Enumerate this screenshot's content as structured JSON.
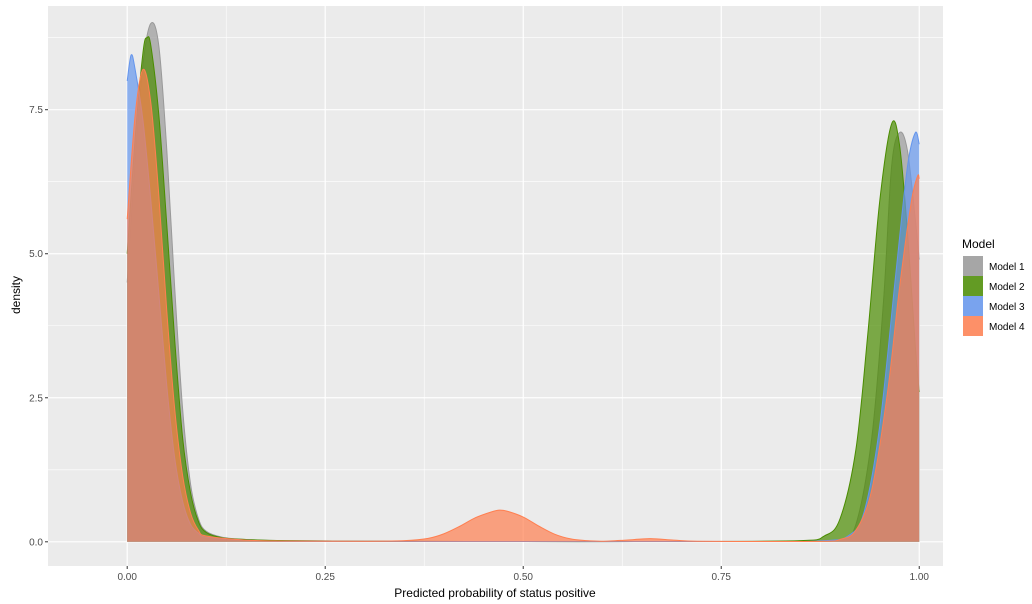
{
  "chart_data": {
    "type": "area",
    "subtype": "density",
    "title": "",
    "xlabel": "Predicted probability of status positive",
    "ylabel": "density",
    "xlim": [
      -0.1,
      1.03
    ],
    "ylim": [
      -0.42,
      9.3
    ],
    "x_ticks": [
      0.0,
      0.25,
      0.5,
      0.75,
      1.0
    ],
    "x_tick_labels": [
      "0.00",
      "0.25",
      "0.50",
      "0.75",
      "1.00"
    ],
    "y_ticks": [
      0.0,
      2.5,
      5.0,
      7.5
    ],
    "y_tick_labels": [
      "0.0",
      "2.5",
      "5.0",
      "7.5"
    ],
    "grid": true,
    "legend": {
      "title": "Model",
      "position": "right"
    },
    "series": [
      {
        "name": "Model 1",
        "color": "#999999",
        "points": [
          [
            0.0,
            4.5
          ],
          [
            0.01,
            6.6
          ],
          [
            0.02,
            8.3
          ],
          [
            0.03,
            9.0
          ],
          [
            0.04,
            8.6
          ],
          [
            0.05,
            6.8
          ],
          [
            0.06,
            4.4
          ],
          [
            0.07,
            2.3
          ],
          [
            0.08,
            1.0
          ],
          [
            0.09,
            0.4
          ],
          [
            0.1,
            0.18
          ],
          [
            0.12,
            0.08
          ],
          [
            0.15,
            0.04
          ],
          [
            0.2,
            0.02
          ],
          [
            0.3,
            0.01
          ],
          [
            0.5,
            0.005
          ],
          [
            0.7,
            0.005
          ],
          [
            0.85,
            0.01
          ],
          [
            0.9,
            0.03
          ],
          [
            0.92,
            0.3
          ],
          [
            0.94,
            1.8
          ],
          [
            0.955,
            4.2
          ],
          [
            0.965,
            6.5
          ],
          [
            0.975,
            7.1
          ],
          [
            0.985,
            6.8
          ],
          [
            0.995,
            5.6
          ],
          [
            1.0,
            4.9
          ]
        ]
      },
      {
        "name": "Model 2",
        "color": "#4a8c00",
        "points": [
          [
            0.0,
            5.0
          ],
          [
            0.01,
            7.0
          ],
          [
            0.02,
            8.5
          ],
          [
            0.025,
            8.75
          ],
          [
            0.03,
            8.6
          ],
          [
            0.04,
            7.4
          ],
          [
            0.05,
            5.5
          ],
          [
            0.06,
            3.5
          ],
          [
            0.07,
            1.8
          ],
          [
            0.08,
            0.85
          ],
          [
            0.09,
            0.35
          ],
          [
            0.1,
            0.16
          ],
          [
            0.12,
            0.07
          ],
          [
            0.15,
            0.04
          ],
          [
            0.2,
            0.02
          ],
          [
            0.3,
            0.01
          ],
          [
            0.5,
            0.005
          ],
          [
            0.7,
            0.005
          ],
          [
            0.85,
            0.02
          ],
          [
            0.88,
            0.1
          ],
          [
            0.9,
            0.4
          ],
          [
            0.92,
            1.6
          ],
          [
            0.935,
            3.6
          ],
          [
            0.95,
            5.9
          ],
          [
            0.965,
            7.25
          ],
          [
            0.975,
            6.9
          ],
          [
            0.985,
            5.4
          ],
          [
            0.995,
            3.4
          ],
          [
            1.0,
            2.6
          ]
        ]
      },
      {
        "name": "Model 3",
        "color": "#6495ed",
        "points": [
          [
            0.0,
            8.0
          ],
          [
            0.005,
            8.45
          ],
          [
            0.01,
            8.2
          ],
          [
            0.02,
            7.3
          ],
          [
            0.03,
            5.9
          ],
          [
            0.04,
            4.3
          ],
          [
            0.05,
            2.7
          ],
          [
            0.06,
            1.45
          ],
          [
            0.07,
            0.7
          ],
          [
            0.08,
            0.3
          ],
          [
            0.09,
            0.15
          ],
          [
            0.1,
            0.08
          ],
          [
            0.15,
            0.03
          ],
          [
            0.2,
            0.01
          ],
          [
            0.5,
            0.005
          ],
          [
            0.8,
            0.005
          ],
          [
            0.88,
            0.02
          ],
          [
            0.91,
            0.1
          ],
          [
            0.93,
            0.5
          ],
          [
            0.95,
            2.0
          ],
          [
            0.97,
            4.6
          ],
          [
            0.985,
            6.5
          ],
          [
            0.995,
            7.1
          ],
          [
            1.0,
            6.9
          ]
        ]
      },
      {
        "name": "Model 4",
        "color": "#ff7f50",
        "points": [
          [
            0.0,
            5.6
          ],
          [
            0.01,
            7.4
          ],
          [
            0.02,
            8.2
          ],
          [
            0.03,
            7.6
          ],
          [
            0.04,
            6.0
          ],
          [
            0.05,
            4.0
          ],
          [
            0.06,
            2.3
          ],
          [
            0.07,
            1.15
          ],
          [
            0.08,
            0.5
          ],
          [
            0.09,
            0.2
          ],
          [
            0.1,
            0.1
          ],
          [
            0.15,
            0.03
          ],
          [
            0.2,
            0.015
          ],
          [
            0.3,
            0.01
          ],
          [
            0.35,
            0.02
          ],
          [
            0.38,
            0.06
          ],
          [
            0.4,
            0.14
          ],
          [
            0.42,
            0.27
          ],
          [
            0.44,
            0.42
          ],
          [
            0.46,
            0.52
          ],
          [
            0.47,
            0.55
          ],
          [
            0.48,
            0.53
          ],
          [
            0.5,
            0.43
          ],
          [
            0.52,
            0.27
          ],
          [
            0.54,
            0.13
          ],
          [
            0.56,
            0.05
          ],
          [
            0.58,
            0.02
          ],
          [
            0.6,
            0.01
          ],
          [
            0.63,
            0.03
          ],
          [
            0.66,
            0.055
          ],
          [
            0.69,
            0.03
          ],
          [
            0.72,
            0.01
          ],
          [
            0.8,
            0.005
          ],
          [
            0.88,
            0.01
          ],
          [
            0.9,
            0.04
          ],
          [
            0.92,
            0.2
          ],
          [
            0.94,
            0.9
          ],
          [
            0.96,
            2.6
          ],
          [
            0.975,
            4.4
          ],
          [
            0.99,
            5.9
          ],
          [
            0.998,
            6.35
          ],
          [
            1.0,
            6.3
          ]
        ]
      }
    ]
  }
}
